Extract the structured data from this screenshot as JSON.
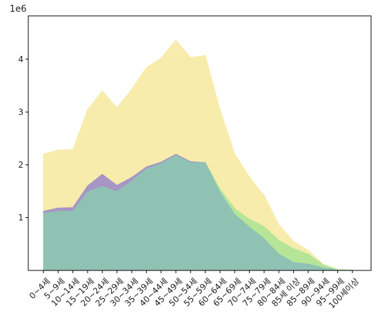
{
  "chart_data": {
    "type": "area",
    "multiplier_label": "1e6",
    "categories": [
      "0~4세",
      "5~9세",
      "10~14세",
      "15~19세",
      "20~24세",
      "25~29세",
      "30~34세",
      "35~39세",
      "40~44세",
      "45~49세",
      "50~54세",
      "55~59세",
      "60~64세",
      "65~69세",
      "70~74세",
      "75~79세",
      "80~84세",
      "85세 이상",
      "85~89세",
      "90~94세",
      "95~99세",
      "100세이상"
    ],
    "ylim": [
      0,
      4.82
    ],
    "yticks": [
      1,
      2,
      3,
      4
    ],
    "grid": false,
    "series": [
      {
        "color": "#f7eba6",
        "values": [
          2.2,
          2.28,
          2.29,
          3.04,
          3.4,
          3.08,
          3.43,
          3.84,
          4.02,
          4.36,
          4.03,
          4.07,
          3.04,
          2.2,
          1.77,
          1.42,
          0.86,
          0.55,
          0.38,
          0.12,
          0.02,
          0.005
        ]
      },
      {
        "color": "#b2e597",
        "values": [
          1.12,
          1.18,
          1.19,
          1.6,
          1.82,
          1.61,
          1.76,
          1.96,
          2.05,
          2.2,
          2.06,
          2.04,
          1.54,
          1.17,
          0.97,
          0.83,
          0.57,
          0.41,
          0.31,
          0.11,
          0.015,
          0.004
        ]
      },
      {
        "color": "#a691c7",
        "values": [
          1.12,
          1.18,
          1.19,
          1.6,
          1.82,
          1.61,
          1.76,
          1.96,
          2.05,
          2.2,
          2.06,
          2.04,
          1.48,
          1.06,
          0.82,
          0.6,
          0.31,
          0.15,
          0.12,
          0.05,
          0.005,
          0.002
        ]
      },
      {
        "color": "#8ec4b3",
        "values": [
          1.08,
          1.12,
          1.12,
          1.48,
          1.59,
          1.49,
          1.69,
          1.92,
          2.02,
          2.18,
          2.04,
          2.04,
          1.48,
          1.06,
          0.82,
          0.6,
          0.31,
          0.15,
          0.12,
          0.05,
          0.005,
          0.002
        ]
      }
    ]
  }
}
